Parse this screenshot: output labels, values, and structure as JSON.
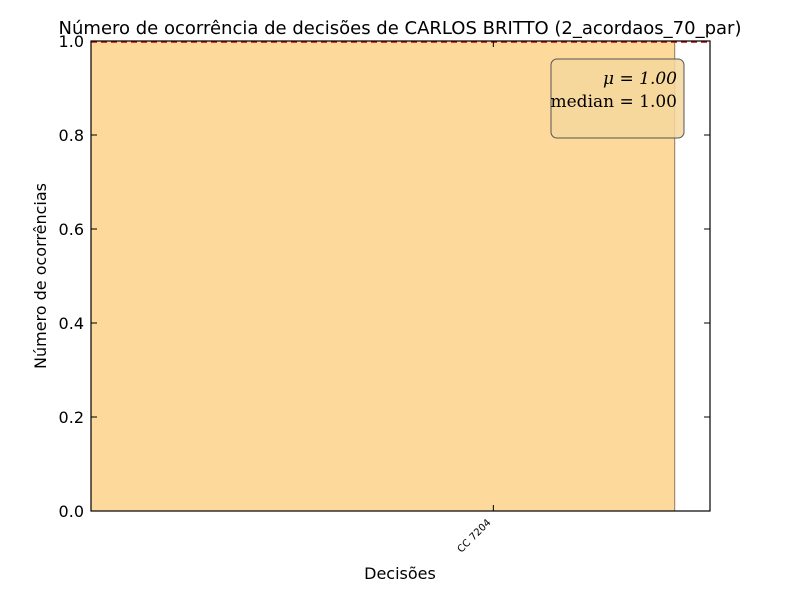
{
  "chart_data": {
    "type": "bar",
    "title": "Número de ocorrência de decisões de CARLOS BRITTO (2_acordaos_70_par)",
    "xlabel": "Decisões",
    "ylabel": "Número de ocorrências",
    "categories": [
      "CC 7204"
    ],
    "values": [
      1
    ],
    "ylim": [
      0,
      1
    ],
    "yticks": [
      "0.0",
      "0.2",
      "0.4",
      "0.6",
      "0.8",
      "1.0"
    ],
    "bar_color": "#fdd99b",
    "mean_line_value": 1.0,
    "mean_line_color": "#cc0000",
    "annotation": {
      "mean_label": "μ = 1.00",
      "median_label": "median = 1.00",
      "placement": "top-right"
    },
    "grid": false
  }
}
